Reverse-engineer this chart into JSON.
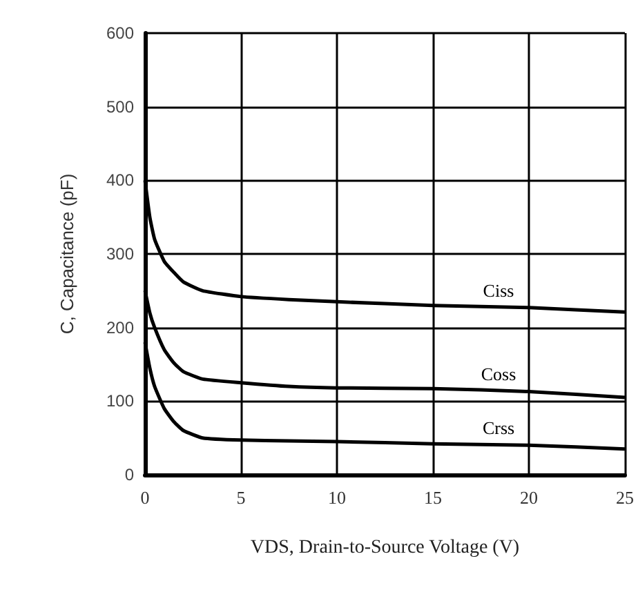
{
  "chart_data": {
    "type": "line",
    "xlabel": "VDS, Drain-to-Source Voltage (V)",
    "ylabel": "C, Capacitance (pF)",
    "xlim": [
      0,
      25
    ],
    "xticks": [
      0,
      5,
      10,
      15,
      20,
      25
    ],
    "ylim": [
      0,
      600
    ],
    "yticks": [
      0,
      100,
      200,
      300,
      400,
      500,
      600
    ],
    "grid": true,
    "marker": "none",
    "line_style": "solid",
    "legend": false,
    "series": [
      {
        "name": "Ciss",
        "color": "#000000",
        "x": [
          0,
          0.25,
          0.5,
          1,
          1.5,
          2,
          3,
          5,
          7.5,
          10,
          15,
          20,
          25
        ],
        "values": [
          400,
          350,
          320,
          290,
          275,
          262,
          250,
          242,
          238,
          235,
          230,
          227,
          221
        ]
      },
      {
        "name": "Coss",
        "color": "#000000",
        "x": [
          0,
          0.25,
          0.5,
          1,
          1.5,
          2,
          3,
          5,
          7.5,
          10,
          15,
          20,
          25
        ],
        "values": [
          250,
          220,
          200,
          170,
          152,
          140,
          130,
          125,
          120,
          118,
          117,
          113,
          105
        ]
      },
      {
        "name": "Crss",
        "color": "#000000",
        "x": [
          0,
          0.25,
          0.5,
          1,
          1.5,
          2,
          3,
          5,
          7.5,
          10,
          15,
          20,
          25
        ],
        "values": [
          180,
          145,
          120,
          90,
          72,
          60,
          50,
          47,
          46,
          45,
          42,
          40,
          35
        ]
      }
    ]
  }
}
